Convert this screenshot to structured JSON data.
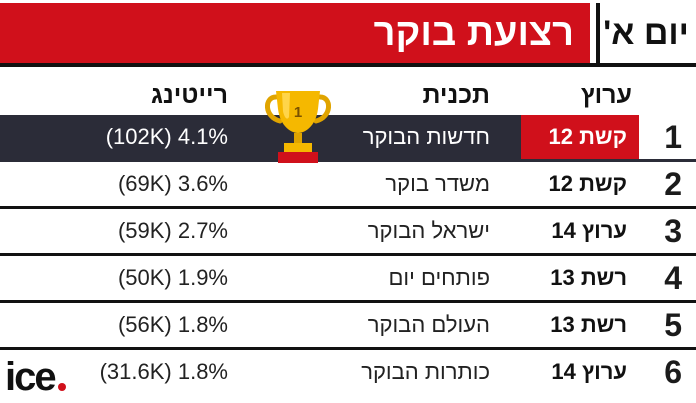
{
  "header": {
    "title": "רצועת בוקר",
    "day": "יום א'"
  },
  "columns": {
    "channel": "ערוץ",
    "program": "תכנית",
    "rating": "רייטינג"
  },
  "rows": [
    {
      "rank": "1",
      "channel": "קשת 12",
      "program": "חדשות הבוקר",
      "rating": "(102K) 4.1%"
    },
    {
      "rank": "2",
      "channel": "קשת 12",
      "program": "משדר בוקר",
      "rating": "(69K) 3.6%"
    },
    {
      "rank": "3",
      "channel": "ערוץ 14",
      "program": "ישראל הבוקר",
      "rating": "(59K) 2.7%"
    },
    {
      "rank": "4",
      "channel": "רשת 13",
      "program": "פותחים יום",
      "rating": "(50K) 1.9%"
    },
    {
      "rank": "5",
      "channel": "רשת 13",
      "program": "העולם הבוקר",
      "rating": "(56K) 1.8%"
    },
    {
      "rank": "6",
      "channel": "ערוץ 14",
      "program": "כותרות הבוקר",
      "rating": "(31.6K) 1.8%"
    }
  ],
  "trophy": {
    "icon": "trophy-icon",
    "number": "1"
  },
  "logo": {
    "text": "ice",
    "icon": "ice-logo"
  },
  "colors": {
    "accent": "#d0101b",
    "highlight_row": "#2b2c38",
    "trophy_gold": "#f5b800"
  }
}
